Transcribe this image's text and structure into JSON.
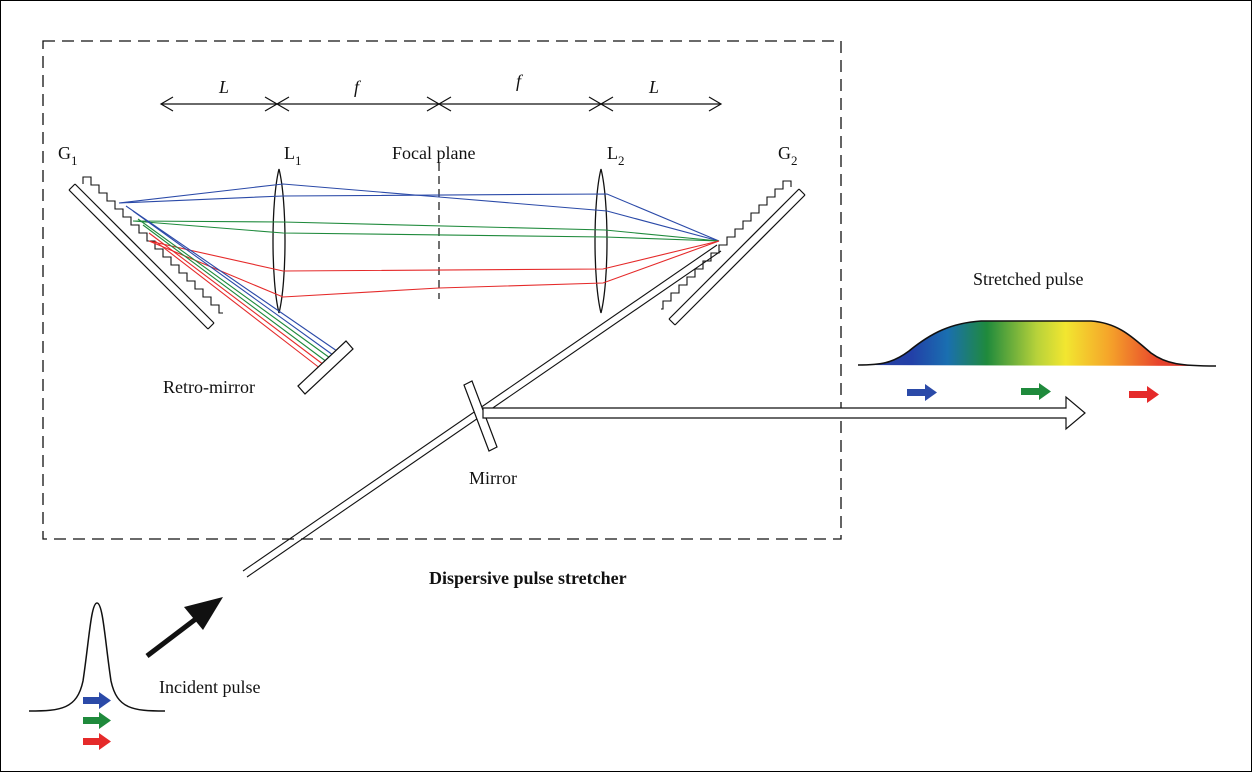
{
  "labels": {
    "g1_main": "G",
    "g1_sub": "1",
    "l1_main": "L",
    "l1_sub": "1",
    "focal_plane": "Focal plane",
    "l2_main": "L",
    "l2_sub": "2",
    "g2_main": "G",
    "g2_sub": "2",
    "retro_mirror": "Retro-mirror",
    "mirror": "Mirror",
    "stretched_pulse": "Stretched pulse",
    "incident_pulse": "Incident pulse",
    "title": "Dispersive pulse stretcher"
  },
  "dimensions": {
    "seg1": "L",
    "seg2": "f",
    "seg3": "f",
    "seg4": "L"
  },
  "colors": {
    "blue": "#2b4aa8",
    "green": "#1f8a3c",
    "red": "#e52a2a",
    "line": "#111111"
  }
}
